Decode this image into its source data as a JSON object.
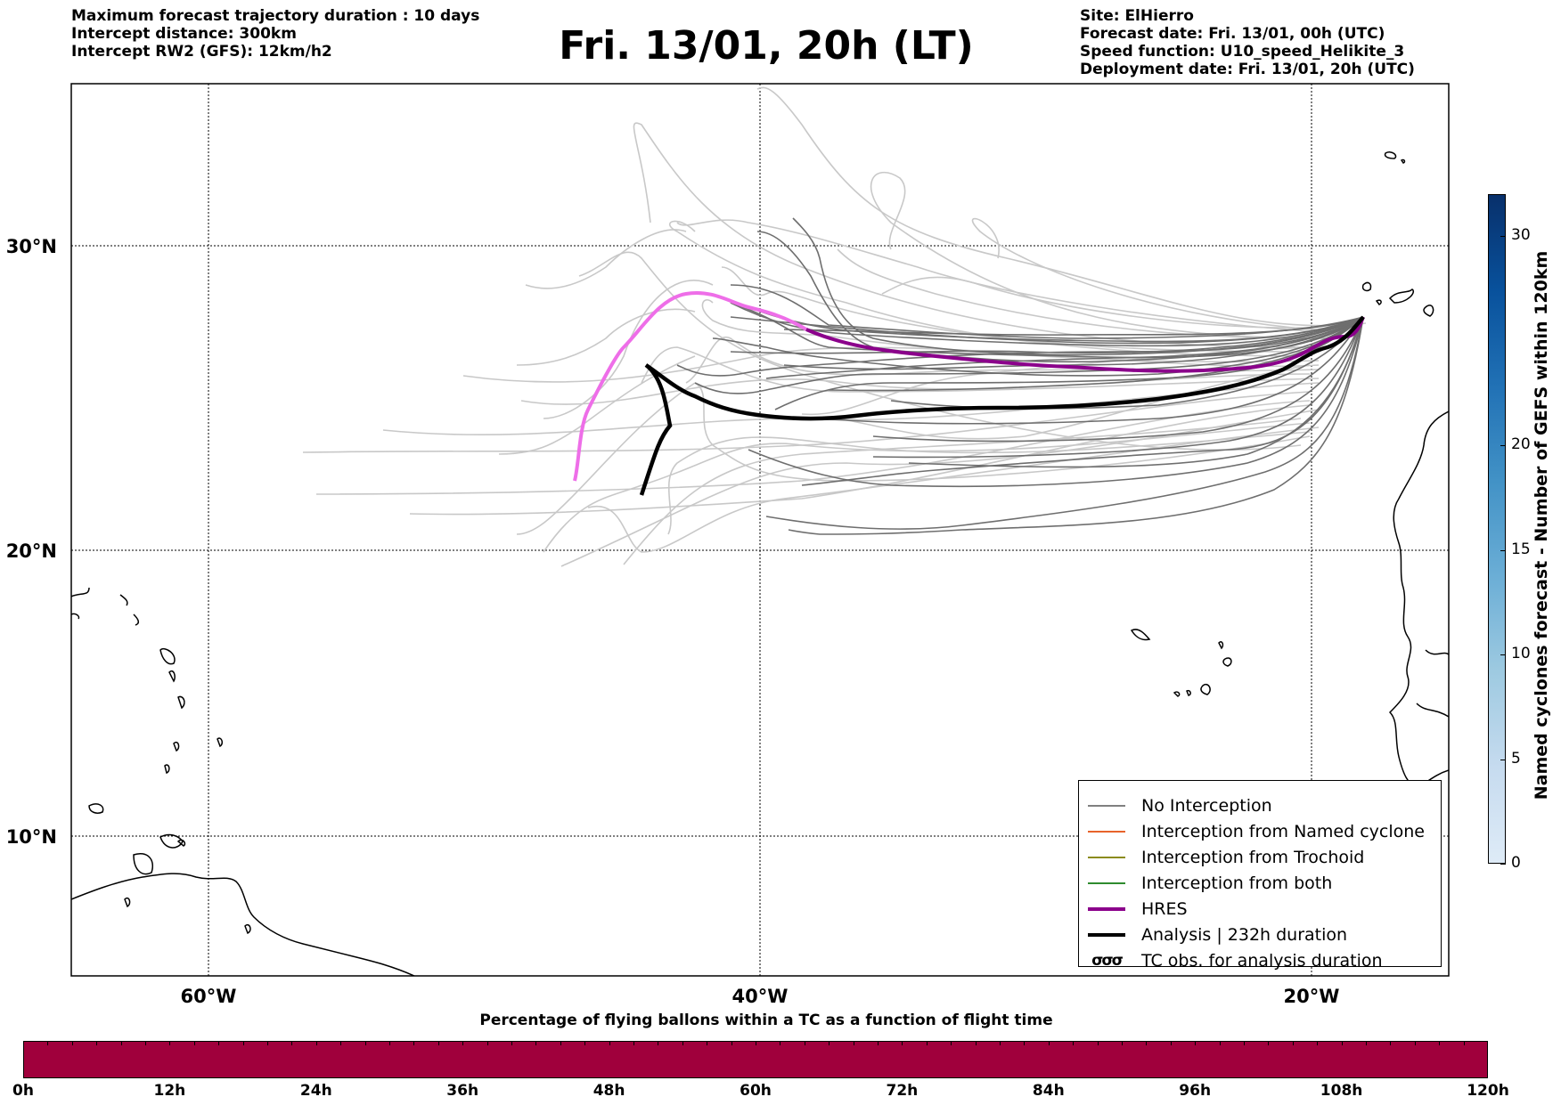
{
  "header": {
    "left_lines": [
      "Maximum forecast trajectory duration : 10 days",
      "Intercept distance: 300km",
      "Intercept RW2 (GFS):  12km/h2"
    ],
    "title": "Fri. 13/01, 20h (LT)",
    "right_lines": [
      "Site: ElHierro",
      "Forecast date: Fri. 13/01, 00h (UTC)",
      "Speed function: U10_speed_Helikite_3",
      "Deployment date: Fri. 13/01, 20h (UTC)"
    ]
  },
  "map": {
    "lat_labels": [
      "30°N",
      "20°N",
      "10°N"
    ],
    "lon_labels": [
      "60°W",
      "40°W",
      "20°W"
    ]
  },
  "legend": {
    "items": [
      {
        "label": "No Interception",
        "color": "#808080",
        "kind": "line"
      },
      {
        "label": "Interception from Named cyclone",
        "color": "#e8632b",
        "kind": "line"
      },
      {
        "label": "Interception from Trochoid",
        "color": "#8b8b1a",
        "kind": "line"
      },
      {
        "label": "Interception from both",
        "color": "#2e8b2e",
        "kind": "line"
      },
      {
        "label": "HRES",
        "color": "#8b008b",
        "kind": "thick"
      },
      {
        "label": "Analysis | 232h duration",
        "color": "#000000",
        "kind": "thick"
      },
      {
        "label": "TC obs. for analysis duration",
        "color": "#000000",
        "kind": "symbol",
        "symbol": "σσσ"
      }
    ]
  },
  "colorbar_right": {
    "title": "Named cyclones forecast - Number of GEFS within 120km",
    "ticks": [
      "0",
      "5",
      "10",
      "15",
      "20",
      "30"
    ],
    "range": [
      0,
      32
    ],
    "colors": [
      "#deebf7",
      "#c6dbef",
      "#9ecae1",
      "#6baed6",
      "#4292c6",
      "#2171b5",
      "#08519c",
      "#08306b"
    ]
  },
  "colorbar_bottom": {
    "title": "Percentage of flying ballons within a TC as a function of flight time",
    "ticks": [
      "0h",
      "12h",
      "24h",
      "36h",
      "48h",
      "60h",
      "72h",
      "84h",
      "96h",
      "108h",
      "120h"
    ],
    "fill_color": "#a0003c"
  }
}
